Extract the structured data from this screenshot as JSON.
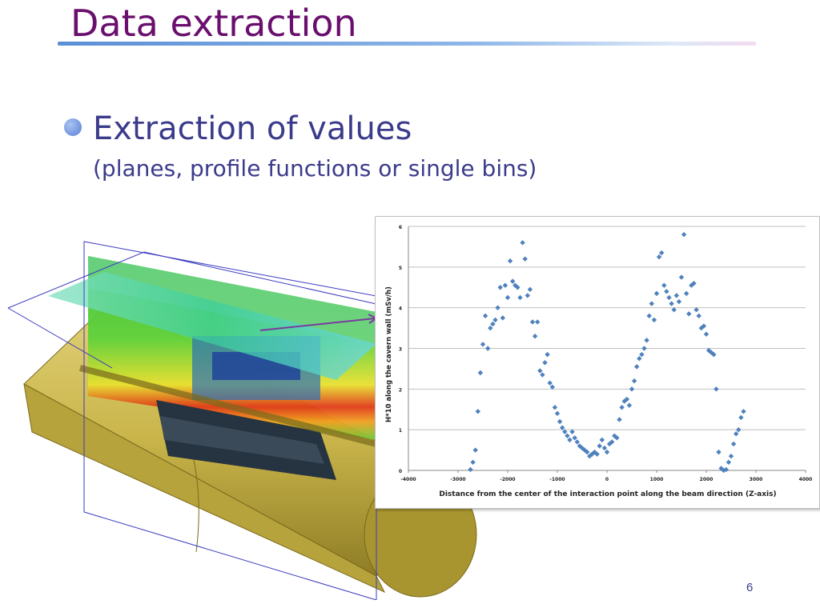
{
  "slide": {
    "title": "Data extraction",
    "bullet_main": "Extraction of values",
    "bullet_sub": "(planes, profile functions or single bins)",
    "page_number": "6"
  },
  "colors": {
    "title": "#6a0f6e",
    "bullet_text": "#3b3b8c",
    "marker": "#4f81bd",
    "cylinder": "#c9b54a"
  },
  "chart_data": {
    "type": "scatter",
    "xlabel": "Distance from the center of the interaction point along the beam direction (Z-axis)",
    "ylabel": "H*10 along the cavern wall (mSv/h)",
    "xlim": [
      -4000,
      4000
    ],
    "ylim": [
      0,
      6
    ],
    "xticks": [
      "-4000",
      "-3000",
      "-2000",
      "-1000",
      "0",
      "1000",
      "2000",
      "3000",
      "4000"
    ],
    "yticks": [
      "0",
      "1",
      "2",
      "3",
      "4",
      "5",
      "6"
    ],
    "grid": "horizontal",
    "marker": "diamond",
    "x": [
      -2750,
      -2700,
      -2650,
      -2600,
      -2550,
      -2500,
      -2450,
      -2400,
      -2350,
      -2300,
      -2250,
      -2200,
      -2150,
      -2100,
      -2050,
      -2000,
      -1950,
      -1900,
      -1850,
      -1800,
      -1750,
      -1700,
      -1650,
      -1600,
      -1550,
      -1500,
      -1450,
      -1400,
      -1350,
      -1300,
      -1250,
      -1200,
      -1150,
      -1100,
      -1050,
      -1000,
      -950,
      -900,
      -850,
      -800,
      -750,
      -700,
      -650,
      -600,
      -550,
      -500,
      -450,
      -400,
      -350,
      -300,
      -250,
      -200,
      -150,
      -100,
      -50,
      0,
      50,
      100,
      150,
      200,
      250,
      300,
      350,
      400,
      450,
      500,
      550,
      600,
      650,
      700,
      750,
      800,
      850,
      900,
      950,
      1000,
      1050,
      1100,
      1150,
      1200,
      1250,
      1300,
      1350,
      1400,
      1450,
      1500,
      1550,
      1600,
      1650,
      1700,
      1750,
      1800,
      1850,
      1900,
      1950,
      2000,
      2050,
      2100,
      2150,
      2200,
      2250,
      2300,
      2350,
      2400,
      2450,
      2500,
      2550,
      2600,
      2650,
      2700,
      2750
    ],
    "y": [
      0.02,
      0.2,
      0.5,
      1.45,
      2.4,
      3.1,
      3.8,
      3.0,
      3.5,
      3.6,
      3.7,
      4.0,
      4.5,
      3.75,
      4.55,
      4.25,
      5.15,
      4.65,
      4.55,
      4.5,
      4.25,
      5.6,
      5.2,
      4.3,
      4.45,
      3.65,
      3.3,
      3.65,
      2.45,
      2.35,
      2.65,
      2.85,
      2.15,
      2.05,
      1.55,
      1.4,
      1.2,
      1.05,
      0.95,
      0.85,
      0.75,
      0.95,
      0.8,
      0.7,
      0.6,
      0.55,
      0.5,
      0.45,
      0.35,
      0.4,
      0.45,
      0.4,
      0.6,
      0.75,
      0.55,
      0.45,
      0.65,
      0.7,
      0.85,
      0.8,
      1.25,
      1.55,
      1.7,
      1.75,
      1.6,
      2.0,
      2.2,
      2.55,
      2.75,
      2.85,
      3.0,
      3.2,
      3.8,
      4.1,
      3.7,
      4.35,
      5.25,
      5.35,
      4.55,
      4.4,
      4.25,
      4.1,
      3.95,
      4.3,
      4.15,
      4.75,
      5.8,
      4.35,
      3.85,
      4.55,
      4.6,
      3.95,
      3.8,
      3.5,
      3.55,
      3.35,
      2.95,
      2.9,
      2.85,
      2.0,
      0.45,
      0.05,
      0.0,
      0.02,
      0.2,
      0.35,
      0.65,
      0.9,
      1.0,
      1.3,
      1.45
    ]
  }
}
